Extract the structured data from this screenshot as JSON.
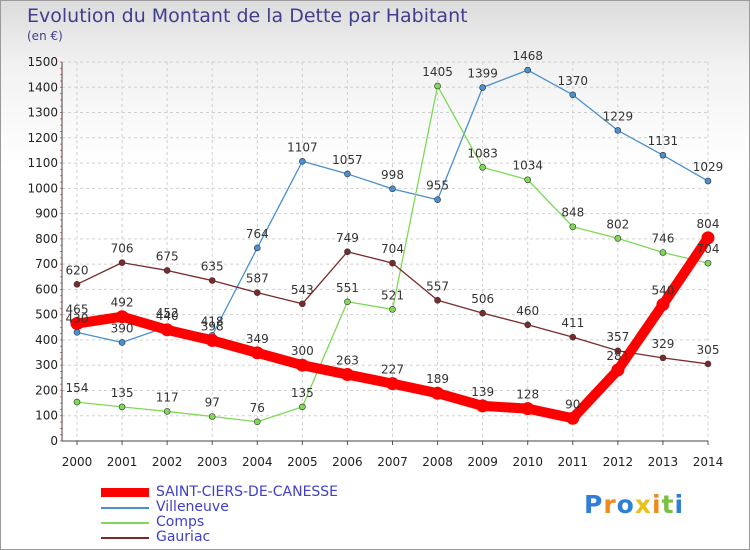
{
  "title": "Evolution du Montant de la Dette par Habitant",
  "unit": "(en €)",
  "logo": "Proxiti",
  "chart_data": {
    "type": "line",
    "x": [
      "2000",
      "2001",
      "2002",
      "2003",
      "2004",
      "2005",
      "2006",
      "2007",
      "2008",
      "2009",
      "2010",
      "2011",
      "2012",
      "2013",
      "2014"
    ],
    "ylim": [
      0,
      1500
    ],
    "yticks": [
      0,
      100,
      200,
      300,
      400,
      500,
      600,
      700,
      800,
      900,
      1000,
      1100,
      1200,
      1300,
      1400,
      1500
    ],
    "grid": true,
    "legend_position": "bottom-left",
    "series": [
      {
        "name": "SAINT-CIERS-DE-CANESSE",
        "color": "#ff0000",
        "emphasis": true,
        "values": [
          465,
          492,
          440,
          398,
          349,
          300,
          263,
          227,
          189,
          139,
          128,
          90,
          281,
          540,
          804
        ],
        "labels": [
          "465",
          "492",
          "440",
          "398",
          "349",
          "300",
          "263",
          "227",
          "189",
          "139",
          "128",
          "90",
          "281",
          "540",
          "804"
        ]
      },
      {
        "name": "Villeneuve",
        "color": "#4a8fcf",
        "emphasis": false,
        "values": [
          430,
          390,
          452,
          418,
          764,
          1107,
          1057,
          998,
          955,
          1399,
          1468,
          1370,
          1229,
          1131,
          1029
        ],
        "labels": [
          "430",
          "390",
          "452",
          "418",
          "764",
          "1107",
          "1057",
          "998",
          "955",
          "1399",
          "1468",
          "1370",
          "1229",
          "1131",
          "1029"
        ]
      },
      {
        "name": "Comps",
        "color": "#7ed957",
        "emphasis": false,
        "values": [
          154,
          135,
          117,
          97,
          76,
          135,
          551,
          521,
          1405,
          1083,
          1034,
          848,
          802,
          746,
          704
        ],
        "labels": [
          "154",
          "135",
          "117",
          "97",
          "76",
          "135",
          "551",
          "521",
          "1405",
          "1083",
          "1034",
          "848",
          "802",
          "746",
          "704"
        ]
      },
      {
        "name": "Gauriac",
        "color": "#7a2a2a",
        "emphasis": false,
        "values": [
          620,
          706,
          675,
          635,
          587,
          543,
          749,
          704,
          557,
          506,
          460,
          411,
          357,
          329,
          305
        ],
        "labels": [
          "620",
          "706",
          "675",
          "635",
          "587",
          "543",
          "749",
          "704",
          "557",
          "506",
          "460",
          "411",
          "357",
          "329",
          "305"
        ]
      }
    ]
  }
}
